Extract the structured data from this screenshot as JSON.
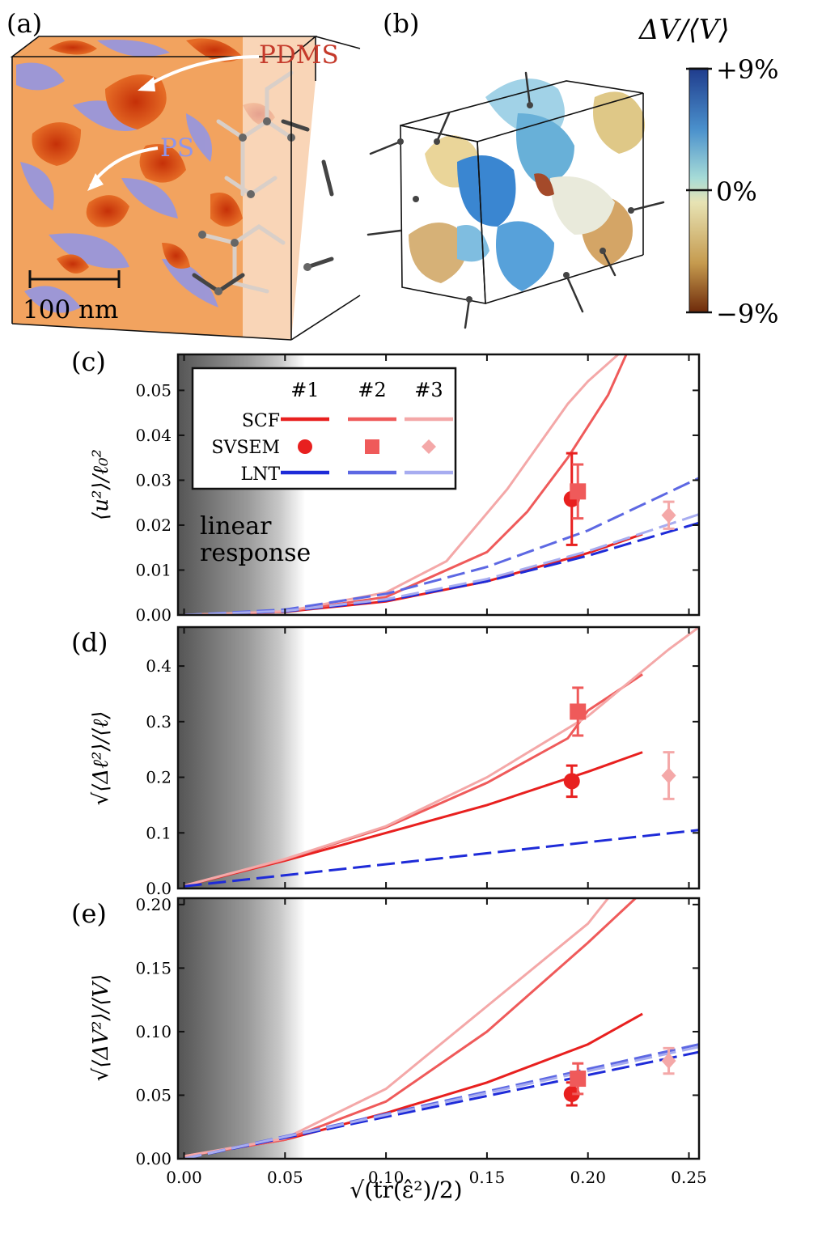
{
  "panels": {
    "a": {
      "label": "(a)",
      "annotations": {
        "pdms": "PDMS",
        "ps": "PS"
      },
      "scalebar": "100 nm",
      "colors": {
        "pdms": "#d93a0b",
        "ps": "#8f95ea",
        "matrix": "#f2a35f"
      }
    },
    "b": {
      "label": "(b)",
      "colorbar": {
        "title": "ΔV/⟨V⟩",
        "ticks": [
          "+9%",
          "0%",
          "−9%"
        ],
        "colors": [
          "#1f3b8c",
          "#4a90cc",
          "#a6dbd7",
          "#e7e3b4",
          "#c59a4e",
          "#6e2a0a"
        ]
      }
    }
  },
  "legend": {
    "col_headers": [
      "#1",
      "#2",
      "#3"
    ],
    "rows": [
      "SCF",
      "SVSEM",
      "LNT"
    ],
    "colors": {
      "scf": [
        "#e8201f",
        "#ef5a5a",
        "#f4a8a8"
      ],
      "lnt": [
        "#1e2bd8",
        "#5d68e3",
        "#a7acf0"
      ]
    }
  },
  "shade_label": [
    "linear",
    "response"
  ],
  "chart_data": [
    {
      "type": "line",
      "panel": "(c)",
      "ylabel": "⟨u²⟩/ℓ₀²",
      "ylim": [
        0,
        0.058
      ],
      "xlim": [
        -0.003,
        0.255
      ],
      "yticks": [
        "0.00",
        "0.01",
        "0.02",
        "0.03",
        "0.04",
        "0.05"
      ],
      "linear_response_region": [
        0,
        0.06
      ],
      "series": [
        {
          "name": "SCF #1",
          "x": [
            0,
            0.05,
            0.1,
            0.15,
            0.2,
            0.227
          ],
          "y": [
            0,
            0.0007,
            0.003,
            0.0075,
            0.0138,
            0.018
          ]
        },
        {
          "name": "SCF #2",
          "x": [
            0,
            0.05,
            0.1,
            0.15,
            0.17,
            0.19,
            0.21,
            0.22
          ],
          "y": [
            0,
            0.0007,
            0.004,
            0.014,
            0.023,
            0.035,
            0.049,
            0.059
          ]
        },
        {
          "name": "SCF #3",
          "x": [
            0,
            0.05,
            0.1,
            0.13,
            0.16,
            0.19,
            0.2,
            0.22
          ],
          "y": [
            0,
            0.0008,
            0.005,
            0.012,
            0.028,
            0.047,
            0.052,
            0.06
          ]
        },
        {
          "name": "LNT #1",
          "x": [
            0,
            0.05,
            0.1,
            0.15,
            0.2,
            0.255
          ],
          "y": [
            0,
            0.0008,
            0.0032,
            0.0075,
            0.0132,
            0.0205
          ]
        },
        {
          "name": "LNT #2",
          "x": [
            0,
            0.05,
            0.1,
            0.15,
            0.2,
            0.255
          ],
          "y": [
            0,
            0.0012,
            0.0047,
            0.0107,
            0.0188,
            0.0305
          ]
        },
        {
          "name": "LNT #3",
          "x": [
            0,
            0.05,
            0.1,
            0.15,
            0.2,
            0.255
          ],
          "y": [
            0,
            0.0009,
            0.0035,
            0.008,
            0.0142,
            0.0224
          ]
        }
      ],
      "points": [
        {
          "name": "SVSEM #1",
          "x": 0.192,
          "y": 0.0258,
          "err": 0.0102
        },
        {
          "name": "SVSEM #2",
          "x": 0.195,
          "y": 0.0275,
          "err": 0.006
        },
        {
          "name": "SVSEM #3",
          "x": 0.24,
          "y": 0.0222,
          "err": 0.003
        }
      ]
    },
    {
      "type": "line",
      "panel": "(d)",
      "ylabel": "√⟨Δℓ²⟩/⟨ℓ⟩",
      "ylim": [
        0,
        0.47
      ],
      "xlim": [
        -0.003,
        0.255
      ],
      "yticks": [
        "0.0",
        "0.1",
        "0.2",
        "0.3",
        "0.4"
      ],
      "linear_response_region": [
        0,
        0.06
      ],
      "series": [
        {
          "name": "SCF #1",
          "x": [
            0,
            0.05,
            0.1,
            0.15,
            0.2,
            0.227
          ],
          "y": [
            0.005,
            0.05,
            0.1,
            0.15,
            0.21,
            0.245
          ]
        },
        {
          "name": "SCF #2",
          "x": [
            0,
            0.05,
            0.1,
            0.15,
            0.19,
            0.2,
            0.227
          ],
          "y": [
            0.005,
            0.052,
            0.11,
            0.19,
            0.27,
            0.32,
            0.385
          ]
        },
        {
          "name": "SCF #3",
          "x": [
            0,
            0.05,
            0.1,
            0.15,
            0.2,
            0.24,
            0.255
          ],
          "y": [
            0.005,
            0.053,
            0.112,
            0.2,
            0.31,
            0.43,
            0.47
          ]
        },
        {
          "name": "LNT #1",
          "x": [
            0,
            0.255
          ],
          "y": [
            0.004,
            0.105
          ]
        }
      ],
      "points": [
        {
          "name": "SVSEM #1",
          "x": 0.192,
          "y": 0.193,
          "err": 0.028
        },
        {
          "name": "SVSEM #2",
          "x": 0.195,
          "y": 0.318,
          "err": 0.043
        },
        {
          "name": "SVSEM #3",
          "x": 0.24,
          "y": 0.203,
          "err": 0.042
        }
      ]
    },
    {
      "type": "line",
      "panel": "(e)",
      "ylabel": "√⟨ΔV²⟩/⟨V⟩",
      "ylabel_main": "√⟨ΔV²⟩/⟨V⟩",
      "ylim": [
        0,
        0.205
      ],
      "xlim": [
        -0.003,
        0.255
      ],
      "yticks": [
        "0.00",
        "0.05",
        "0.10",
        "0.15",
        "0.20"
      ],
      "xticks": [
        "0.00",
        "0.05",
        "0.10",
        "0.15",
        "0.20",
        "0.25"
      ],
      "xlabel": "√(tr(ε̂²)/2)",
      "linear_response_region": [
        0,
        0.06
      ],
      "series": [
        {
          "name": "SCF #1",
          "x": [
            0,
            0.05,
            0.1,
            0.15,
            0.2,
            0.227
          ],
          "y": [
            0.002,
            0.015,
            0.036,
            0.06,
            0.09,
            0.114
          ]
        },
        {
          "name": "SCF #2",
          "x": [
            0,
            0.05,
            0.1,
            0.15,
            0.2,
            0.227
          ],
          "y": [
            0.002,
            0.015,
            0.045,
            0.1,
            0.17,
            0.21
          ]
        },
        {
          "name": "SCF #3",
          "x": [
            0,
            0.05,
            0.1,
            0.15,
            0.2,
            0.21
          ],
          "y": [
            0.002,
            0.016,
            0.055,
            0.12,
            0.185,
            0.205
          ]
        },
        {
          "name": "LNT #1",
          "x": [
            0,
            0.255
          ],
          "y": [
            0,
            0.084
          ]
        },
        {
          "name": "LNT #2",
          "x": [
            0,
            0.255
          ],
          "y": [
            0,
            0.09
          ]
        },
        {
          "name": "LNT #3",
          "x": [
            0,
            0.255
          ],
          "y": [
            0,
            0.088
          ]
        }
      ],
      "points": [
        {
          "name": "SVSEM #1",
          "x": 0.192,
          "y": 0.051,
          "err": 0.009
        },
        {
          "name": "SVSEM #2",
          "x": 0.195,
          "y": 0.063,
          "err": 0.012
        },
        {
          "name": "SVSEM #3",
          "x": 0.24,
          "y": 0.077,
          "err": 0.01
        }
      ]
    }
  ]
}
